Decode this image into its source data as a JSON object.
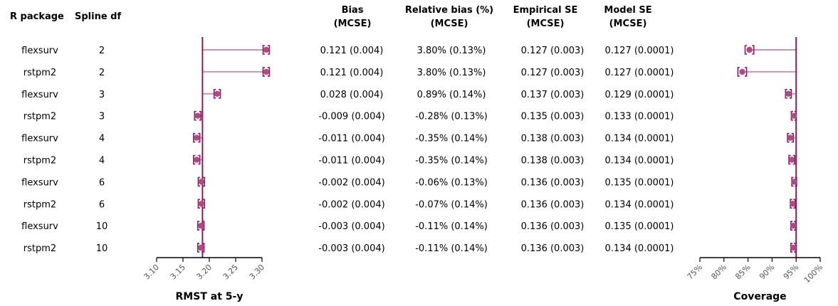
{
  "table": {
    "headers": {
      "pkg": "R package",
      "df": "Spline df",
      "bias": [
        "Bias",
        "(MCSE)"
      ],
      "relbias": [
        "Relative bias (%)",
        "(MCSE)"
      ],
      "empse": [
        "Empirical SE",
        "(MCSE)"
      ],
      "modse": [
        "Model SE",
        "(MCSE)"
      ]
    },
    "rows": [
      {
        "pkg": "flexsurv",
        "df": "2",
        "bias": "0.121 (0.004)",
        "relbias": "3.80% (0.13%)",
        "empse": "0.127 (0.003)",
        "modse": "0.127 (0.0001)"
      },
      {
        "pkg": "rstpm2",
        "df": "2",
        "bias": "0.121 (0.004)",
        "relbias": "3.80% (0.13%)",
        "empse": "0.127 (0.003)",
        "modse": "0.127 (0.0001)"
      },
      {
        "pkg": "flexsurv",
        "df": "3",
        "bias": "0.028 (0.004)",
        "relbias": "0.89% (0.14%)",
        "empse": "0.137 (0.003)",
        "modse": "0.129 (0.0001)"
      },
      {
        "pkg": "rstpm2",
        "df": "3",
        "bias": "-0.009 (0.004)",
        "relbias": "-0.28% (0.13%)",
        "empse": "0.135 (0.003)",
        "modse": "0.133 (0.0001)"
      },
      {
        "pkg": "flexsurv",
        "df": "4",
        "bias": "-0.011 (0.004)",
        "relbias": "-0.35% (0.14%)",
        "empse": "0.138 (0.003)",
        "modse": "0.134 (0.0001)"
      },
      {
        "pkg": "rstpm2",
        "df": "4",
        "bias": "-0.011 (0.004)",
        "relbias": "-0.35% (0.14%)",
        "empse": "0.138 (0.003)",
        "modse": "0.134 (0.0001)"
      },
      {
        "pkg": "flexsurv",
        "df": "6",
        "bias": "-0.002 (0.004)",
        "relbias": "-0.06% (0.13%)",
        "empse": "0.136 (0.003)",
        "modse": "0.135 (0.0001)"
      },
      {
        "pkg": "rstpm2",
        "df": "6",
        "bias": "-0.002 (0.004)",
        "relbias": "-0.07% (0.14%)",
        "empse": "0.136 (0.003)",
        "modse": "0.134 (0.0001)"
      },
      {
        "pkg": "flexsurv",
        "df": "10",
        "bias": "-0.003 (0.004)",
        "relbias": "-0.11% (0.14%)",
        "empse": "0.136 (0.003)",
        "modse": "0.135 (0.0001)"
      },
      {
        "pkg": "rstpm2",
        "df": "10",
        "bias": "-0.003 (0.004)",
        "relbias": "-0.11% (0.14%)",
        "empse": "0.136 (0.003)",
        "modse": "0.134 (0.0001)"
      }
    ]
  },
  "colors": {
    "accent": "#8e1a5e",
    "point": "#b04a85",
    "line": "#c796b2"
  },
  "chart_data": [
    {
      "type": "scatter",
      "xlabel": "RMST at 5-y",
      "xlim": [
        3.1,
        3.3
      ],
      "xticks": [
        "3.10",
        "3.15",
        "3.20",
        "3.25",
        "3.30"
      ],
      "reference": 3.187,
      "values": [
        3.308,
        3.308,
        3.215,
        3.178,
        3.176,
        3.176,
        3.185,
        3.185,
        3.184,
        3.184
      ],
      "ci_lower": [
        3.302,
        3.302,
        3.209,
        3.172,
        3.17,
        3.17,
        3.179,
        3.179,
        3.178,
        3.178
      ],
      "ci_upper": [
        3.314,
        3.314,
        3.221,
        3.184,
        3.182,
        3.182,
        3.191,
        3.191,
        3.19,
        3.19
      ]
    },
    {
      "type": "scatter",
      "xlabel": "Coverage",
      "xlim": [
        75,
        100
      ],
      "xticks": [
        "75%",
        "80%",
        "85%",
        "90%",
        "95%",
        "100%"
      ],
      "reference": 95,
      "values": [
        85.3,
        83.8,
        93.4,
        94.5,
        93.8,
        94.1,
        94.6,
        94.3,
        94.4,
        94.4
      ],
      "ci_lower": [
        84.4,
        82.9,
        92.8,
        94.0,
        93.2,
        93.5,
        94.1,
        93.8,
        93.9,
        93.9
      ],
      "ci_upper": [
        86.2,
        84.7,
        94.0,
        95.0,
        94.4,
        94.7,
        95.1,
        94.8,
        94.9,
        94.9
      ]
    }
  ]
}
